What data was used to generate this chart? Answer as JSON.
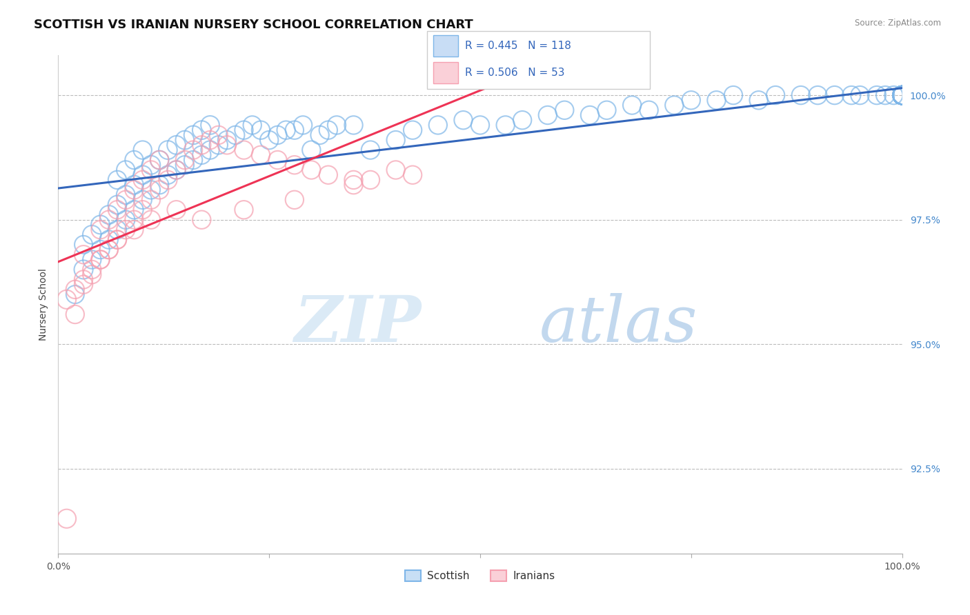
{
  "title": "SCOTTISH VS IRANIAN NURSERY SCHOOL CORRELATION CHART",
  "source_text": "Source: ZipAtlas.com",
  "ylabel": "Nursery School",
  "ytick_labels": [
    "92.5%",
    "95.0%",
    "97.5%",
    "100.0%"
  ],
  "ytick_values": [
    0.925,
    0.95,
    0.975,
    1.0
  ],
  "xlim": [
    0.0,
    1.0
  ],
  "ylim": [
    0.908,
    1.008
  ],
  "R_blue": 0.445,
  "N_blue": 118,
  "R_pink": 0.506,
  "N_pink": 53,
  "blue_color": "#7EB6E8",
  "pink_color": "#F5A0B0",
  "trend_blue_color": "#3366BB",
  "trend_pink_color": "#EE3355",
  "background_color": "#FFFFFF",
  "grid_color": "#BBBBBB",
  "title_fontsize": 13,
  "axis_label_fontsize": 10,
  "tick_fontsize": 10,
  "legend_blue_label": "Scottish",
  "legend_pink_label": "Iranians",
  "blue_scatter_x": [
    0.02,
    0.03,
    0.03,
    0.04,
    0.04,
    0.05,
    0.05,
    0.06,
    0.06,
    0.07,
    0.07,
    0.07,
    0.08,
    0.08,
    0.08,
    0.09,
    0.09,
    0.09,
    0.1,
    0.1,
    0.1,
    0.11,
    0.11,
    0.12,
    0.12,
    0.13,
    0.13,
    0.14,
    0.14,
    0.15,
    0.15,
    0.16,
    0.16,
    0.17,
    0.17,
    0.18,
    0.18,
    0.19,
    0.2,
    0.21,
    0.22,
    0.23,
    0.24,
    0.25,
    0.26,
    0.27,
    0.28,
    0.29,
    0.3,
    0.31,
    0.32,
    0.33,
    0.35,
    0.37,
    0.4,
    0.42,
    0.45,
    0.48,
    0.5,
    0.53,
    0.55,
    0.58,
    0.6,
    0.63,
    0.65,
    0.68,
    0.7,
    0.73,
    0.75,
    0.78,
    0.8,
    0.83,
    0.85,
    0.88,
    0.9,
    0.92,
    0.94,
    0.95,
    0.97,
    0.98,
    0.99,
    1.0,
    1.0,
    1.0,
    1.0,
    1.0,
    1.0,
    1.0,
    1.0,
    1.0,
    1.0,
    1.0,
    1.0,
    1.0,
    1.0,
    1.0,
    1.0,
    1.0,
    1.0,
    1.0,
    1.0,
    1.0,
    1.0,
    1.0,
    1.0,
    1.0,
    1.0,
    1.0,
    1.0,
    1.0,
    1.0,
    1.0,
    1.0,
    1.0,
    1.0,
    1.0,
    1.0,
    1.0
  ],
  "blue_scatter_y": [
    0.96,
    0.965,
    0.97,
    0.967,
    0.972,
    0.969,
    0.974,
    0.971,
    0.976,
    0.973,
    0.978,
    0.983,
    0.975,
    0.98,
    0.985,
    0.977,
    0.982,
    0.987,
    0.979,
    0.984,
    0.989,
    0.981,
    0.986,
    0.982,
    0.987,
    0.984,
    0.989,
    0.985,
    0.99,
    0.986,
    0.991,
    0.987,
    0.992,
    0.988,
    0.993,
    0.989,
    0.994,
    0.99,
    0.991,
    0.992,
    0.993,
    0.994,
    0.993,
    0.991,
    0.992,
    0.993,
    0.993,
    0.994,
    0.989,
    0.992,
    0.993,
    0.994,
    0.994,
    0.989,
    0.991,
    0.993,
    0.994,
    0.995,
    0.994,
    0.994,
    0.995,
    0.996,
    0.997,
    0.996,
    0.997,
    0.998,
    0.997,
    0.998,
    0.999,
    0.999,
    1.0,
    0.999,
    1.0,
    1.0,
    1.0,
    1.0,
    1.0,
    1.0,
    1.0,
    1.0,
    1.0,
    1.0,
    1.0,
    1.0,
    1.0,
    1.0,
    1.0,
    1.0,
    1.0,
    1.0,
    1.0,
    1.0,
    1.0,
    1.0,
    1.0,
    1.0,
    1.0,
    1.0,
    1.0,
    1.0,
    1.0,
    1.0,
    1.0,
    1.0,
    1.0,
    1.0,
    1.0,
    1.0,
    1.0,
    1.0,
    1.0,
    1.0,
    1.0,
    1.0,
    1.0,
    1.0,
    1.0,
    1.0
  ],
  "blue_scatter_sizes": [
    350,
    380,
    350,
    360,
    370,
    360,
    370,
    360,
    370,
    360,
    370,
    360,
    360,
    370,
    360,
    360,
    370,
    360,
    360,
    370,
    360,
    360,
    370,
    360,
    370,
    360,
    370,
    360,
    370,
    360,
    370,
    360,
    370,
    360,
    370,
    360,
    370,
    360,
    360,
    360,
    360,
    360,
    360,
    360,
    360,
    360,
    360,
    360,
    360,
    360,
    360,
    360,
    360,
    360,
    360,
    360,
    360,
    360,
    360,
    360,
    360,
    360,
    360,
    360,
    360,
    360,
    360,
    360,
    360,
    360,
    360,
    360,
    360,
    360,
    360,
    360,
    360,
    360,
    360,
    360,
    360,
    360,
    360,
    360,
    360,
    360,
    360,
    360,
    360,
    360,
    360,
    360,
    360,
    360,
    360,
    360,
    360,
    360,
    360,
    360,
    360,
    360,
    360,
    360,
    360,
    360,
    360,
    360,
    360,
    360,
    360,
    360,
    360,
    360,
    360,
    360,
    360,
    360
  ],
  "pink_scatter_x": [
    0.01,
    0.02,
    0.03,
    0.03,
    0.04,
    0.05,
    0.05,
    0.06,
    0.06,
    0.07,
    0.07,
    0.08,
    0.08,
    0.09,
    0.09,
    0.1,
    0.1,
    0.11,
    0.11,
    0.12,
    0.12,
    0.13,
    0.14,
    0.15,
    0.16,
    0.17,
    0.18,
    0.19,
    0.2,
    0.22,
    0.24,
    0.26,
    0.28,
    0.3,
    0.32,
    0.35,
    0.37,
    0.4,
    0.42,
    0.35,
    0.28,
    0.22,
    0.17,
    0.14,
    0.11,
    0.09,
    0.07,
    0.06,
    0.05,
    0.04,
    0.03,
    0.02,
    0.01
  ],
  "pink_scatter_y": [
    0.915,
    0.956,
    0.962,
    0.968,
    0.964,
    0.967,
    0.973,
    0.969,
    0.975,
    0.971,
    0.977,
    0.973,
    0.979,
    0.975,
    0.981,
    0.977,
    0.983,
    0.979,
    0.985,
    0.981,
    0.987,
    0.983,
    0.985,
    0.987,
    0.989,
    0.99,
    0.991,
    0.992,
    0.99,
    0.989,
    0.988,
    0.987,
    0.986,
    0.985,
    0.984,
    0.983,
    0.983,
    0.985,
    0.984,
    0.982,
    0.979,
    0.977,
    0.975,
    0.977,
    0.975,
    0.973,
    0.971,
    0.969,
    0.967,
    0.965,
    0.963,
    0.961,
    0.959
  ],
  "pink_scatter_sizes": [
    380,
    360,
    360,
    360,
    360,
    360,
    360,
    360,
    360,
    360,
    360,
    360,
    360,
    360,
    360,
    360,
    360,
    360,
    360,
    360,
    360,
    360,
    360,
    360,
    360,
    360,
    360,
    360,
    360,
    360,
    360,
    360,
    360,
    360,
    360,
    360,
    360,
    360,
    360,
    360,
    360,
    360,
    360,
    360,
    360,
    360,
    360,
    360,
    360,
    360,
    360,
    360,
    380
  ]
}
